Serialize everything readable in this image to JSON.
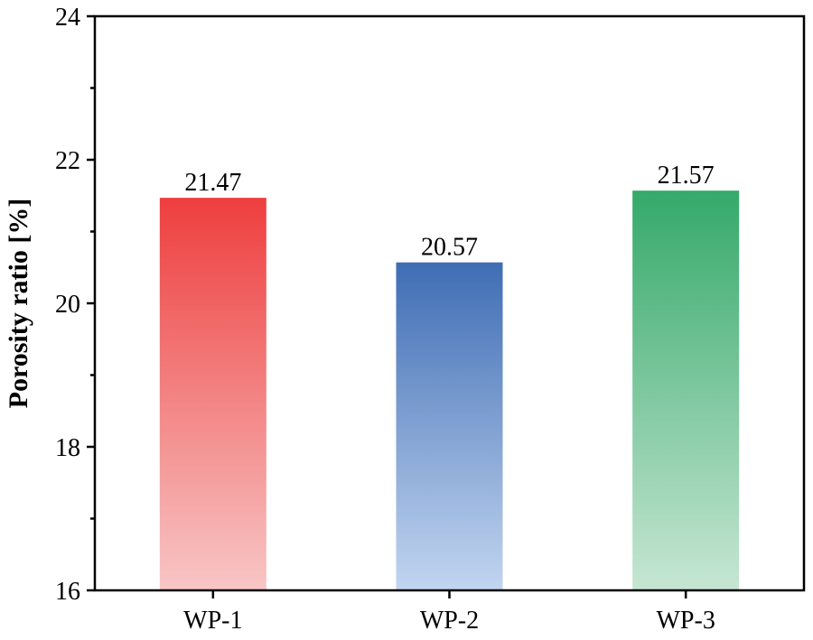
{
  "chart_data": {
    "type": "bar",
    "title": "",
    "xlabel": "",
    "ylabel": "Porosity ratio [%]",
    "ylim": [
      16,
      24
    ],
    "yticks": [
      16,
      18,
      20,
      22,
      24
    ],
    "ytick_labels": [
      "16",
      "18",
      "20",
      "22",
      "24"
    ],
    "categories": [
      "WP-1",
      "WP-2",
      "WP-3"
    ],
    "values": [
      21.47,
      20.57,
      21.57
    ],
    "value_labels": [
      "21.47",
      "20.57",
      "21.57"
    ],
    "bar_colors": [
      {
        "top": "#ee3e3e",
        "bottom": "#f8c6c6"
      },
      {
        "top": "#3f6db4",
        "bottom": "#c2d5f0"
      },
      {
        "top": "#35a96a",
        "bottom": "#c6e6d3"
      }
    ],
    "grid": false
  }
}
